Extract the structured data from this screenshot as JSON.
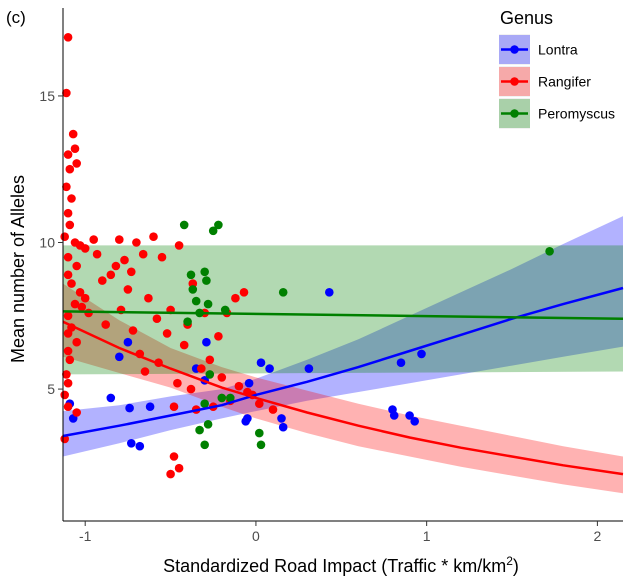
{
  "panel_label": "(c)",
  "chart_data": {
    "type": "scatter",
    "xlabel": "Standardized Road Impact (Traffic * km/km",
    "xlabel_sup": "2",
    "xlabel_close": ")",
    "ylabel": "Mean number of Alleles",
    "xlim": [
      -1.13,
      2.15
    ],
    "ylim": [
      0.5,
      18.0
    ],
    "x_ticks": [
      -1,
      0,
      1,
      2
    ],
    "y_ticks": [
      5,
      10,
      15
    ],
    "grid": false,
    "legend": {
      "title": "Genus",
      "placement": "top-right"
    },
    "series": [
      {
        "name": "Lontra",
        "color": "#0000ff",
        "fit": {
          "x": [
            -1.13,
            -0.8,
            -0.5,
            -0.2,
            0.0,
            0.3,
            0.6,
            0.9,
            1.2,
            1.5,
            1.8,
            2.15
          ],
          "y": [
            3.4,
            3.75,
            4.1,
            4.45,
            4.8,
            5.25,
            5.75,
            6.3,
            6.85,
            7.4,
            7.9,
            8.45
          ],
          "lower": [
            2.7,
            3.15,
            3.6,
            4.0,
            4.25,
            4.6,
            4.9,
            5.2,
            5.5,
            5.8,
            6.1,
            6.45
          ],
          "upper": [
            4.25,
            4.45,
            4.75,
            5.0,
            5.35,
            6.0,
            6.7,
            7.5,
            8.3,
            9.1,
            9.95,
            10.9
          ]
        },
        "points": [
          [
            -1.09,
            4.5
          ],
          [
            -1.07,
            4.0
          ],
          [
            -0.85,
            4.7
          ],
          [
            -0.8,
            6.1
          ],
          [
            -0.75,
            6.6
          ],
          [
            -0.74,
            4.35
          ],
          [
            -0.73,
            3.15
          ],
          [
            -0.68,
            3.05
          ],
          [
            -0.62,
            4.4
          ],
          [
            -0.35,
            5.7
          ],
          [
            -0.3,
            5.3
          ],
          [
            -0.29,
            6.6
          ],
          [
            -0.06,
            3.9
          ],
          [
            -0.05,
            4.0
          ],
          [
            -0.04,
            5.2
          ],
          [
            0.03,
            5.9
          ],
          [
            0.08,
            5.7
          ],
          [
            0.15,
            4.0
          ],
          [
            0.16,
            3.7
          ],
          [
            0.31,
            5.7
          ],
          [
            0.43,
            8.3
          ],
          [
            0.8,
            4.3
          ],
          [
            0.81,
            4.1
          ],
          [
            0.85,
            5.9
          ],
          [
            0.9,
            4.1
          ],
          [
            0.93,
            3.9
          ],
          [
            0.97,
            6.2
          ]
        ]
      },
      {
        "name": "Rangifer",
        "color": "#ff0000",
        "fit": {
          "x": [
            -1.13,
            -0.8,
            -0.5,
            -0.2,
            0.0,
            0.3,
            0.6,
            0.9,
            1.2,
            1.5,
            1.8,
            2.15
          ],
          "y": [
            7.3,
            6.4,
            5.7,
            5.05,
            4.7,
            4.2,
            3.75,
            3.35,
            3.0,
            2.7,
            2.4,
            2.1
          ],
          "lower": [
            6.1,
            5.55,
            5.05,
            4.4,
            4.0,
            3.5,
            3.05,
            2.7,
            2.35,
            2.05,
            1.75,
            1.45
          ],
          "upper": [
            8.6,
            7.35,
            6.4,
            5.75,
            5.4,
            4.95,
            4.5,
            4.1,
            3.75,
            3.4,
            3.05,
            2.7
          ]
        },
        "points": [
          [
            -1.1,
            17.0
          ],
          [
            -1.11,
            15.1
          ],
          [
            -1.07,
            13.7
          ],
          [
            -1.06,
            13.2
          ],
          [
            -1.05,
            12.7
          ],
          [
            -1.1,
            13.0
          ],
          [
            -1.09,
            12.5
          ],
          [
            -1.11,
            11.9
          ],
          [
            -1.08,
            11.5
          ],
          [
            -1.1,
            11.0
          ],
          [
            -1.09,
            10.6
          ],
          [
            -1.12,
            10.2
          ],
          [
            -1.06,
            10.0
          ],
          [
            -1.03,
            9.9
          ],
          [
            -1.0,
            9.8
          ],
          [
            -1.1,
            9.5
          ],
          [
            -1.05,
            9.2
          ],
          [
            -1.1,
            8.9
          ],
          [
            -1.08,
            8.6
          ],
          [
            -1.03,
            8.3
          ],
          [
            -1.06,
            7.9
          ],
          [
            -1.1,
            7.5
          ],
          [
            -1.08,
            7.1
          ],
          [
            -1.1,
            6.9
          ],
          [
            -1.05,
            6.6
          ],
          [
            -1.1,
            6.3
          ],
          [
            -1.09,
            6.0
          ],
          [
            -1.11,
            5.5
          ],
          [
            -1.1,
            5.2
          ],
          [
            -1.12,
            4.8
          ],
          [
            -1.1,
            4.4
          ],
          [
            -1.12,
            3.3
          ],
          [
            -1.0,
            8.1
          ],
          [
            -0.98,
            7.6
          ],
          [
            -0.95,
            10.1
          ],
          [
            -0.93,
            9.6
          ],
          [
            -0.9,
            8.7
          ],
          [
            -0.88,
            7.2
          ],
          [
            -0.85,
            8.9
          ],
          [
            -0.82,
            9.2
          ],
          [
            -0.8,
            10.1
          ],
          [
            -0.79,
            7.7
          ],
          [
            -0.77,
            9.4
          ],
          [
            -0.75,
            8.4
          ],
          [
            -0.73,
            9.0
          ],
          [
            -0.72,
            7.0
          ],
          [
            -0.7,
            10.0
          ],
          [
            -0.68,
            6.2
          ],
          [
            -0.66,
            9.6
          ],
          [
            -0.65,
            5.6
          ],
          [
            -0.63,
            8.1
          ],
          [
            -0.6,
            10.2
          ],
          [
            -0.58,
            7.4
          ],
          [
            -0.57,
            5.9
          ],
          [
            -0.55,
            9.5
          ],
          [
            -0.52,
            6.9
          ],
          [
            -0.5,
            7.7
          ],
          [
            -0.48,
            4.4
          ],
          [
            -0.46,
            5.2
          ],
          [
            -0.45,
            9.9
          ],
          [
            -0.42,
            6.5
          ],
          [
            -0.4,
            7.2
          ],
          [
            -0.38,
            5.0
          ],
          [
            -0.37,
            8.6
          ],
          [
            -0.35,
            4.3
          ],
          [
            -0.32,
            5.7
          ],
          [
            -0.3,
            7.6
          ],
          [
            -0.27,
            6.0
          ],
          [
            -0.25,
            4.4
          ],
          [
            -0.22,
            6.8
          ],
          [
            -0.2,
            5.4
          ],
          [
            -0.17,
            7.6
          ],
          [
            -0.15,
            4.6
          ],
          [
            -0.12,
            8.1
          ],
          [
            -0.1,
            5.1
          ],
          [
            -0.07,
            8.3
          ],
          [
            -0.05,
            4.9
          ],
          [
            -0.02,
            4.8
          ],
          [
            0.02,
            4.5
          ],
          [
            0.1,
            4.3
          ],
          [
            -0.48,
            2.7
          ],
          [
            -0.45,
            2.3
          ],
          [
            -0.5,
            2.1
          ],
          [
            -1.05,
            4.2
          ],
          [
            -1.02,
            7.8
          ]
        ]
      },
      {
        "name": "Peromyscus",
        "color": "#008000",
        "fit": {
          "x": [
            -1.13,
            2.15
          ],
          "y": [
            7.65,
            7.4
          ],
          "lower": [
            5.5,
            5.6
          ],
          "upper": [
            9.9,
            9.9
          ]
        },
        "points": [
          [
            -0.42,
            10.6
          ],
          [
            -0.38,
            8.9
          ],
          [
            -0.37,
            8.4
          ],
          [
            -0.35,
            8.0
          ],
          [
            -0.33,
            7.6
          ],
          [
            -0.3,
            9.0
          ],
          [
            -0.29,
            8.7
          ],
          [
            -0.28,
            7.9
          ],
          [
            -0.27,
            5.5
          ],
          [
            -0.3,
            4.5
          ],
          [
            -0.28,
            3.8
          ],
          [
            -0.3,
            3.1
          ],
          [
            -0.25,
            10.4
          ],
          [
            -0.22,
            10.6
          ],
          [
            -0.2,
            4.7
          ],
          [
            -0.18,
            7.7
          ],
          [
            -0.15,
            4.7
          ],
          [
            0.02,
            3.5
          ],
          [
            0.03,
            3.1
          ],
          [
            0.16,
            8.3
          ],
          [
            1.72,
            9.7
          ],
          [
            -0.33,
            3.6
          ],
          [
            -0.4,
            7.3
          ]
        ]
      }
    ]
  },
  "colors": {
    "Lontra": "#0000ff",
    "Rangifer": "#ff0000",
    "Peromyscus": "#008000",
    "axis": "#000000",
    "tick_text": "#4d4d4d",
    "legend_key_bg": "#f2f2f2"
  }
}
